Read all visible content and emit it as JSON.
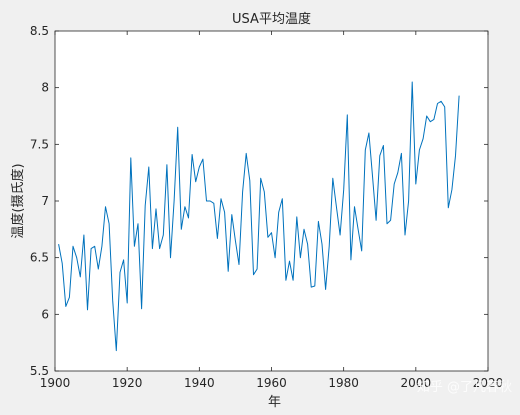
{
  "chart_data": {
    "type": "line",
    "title": "USA平均温度",
    "xlabel": "年",
    "ylabel": "温度(摄氏度)",
    "xlim": [
      1900,
      2020
    ],
    "ylim": [
      5.5,
      8.5
    ],
    "xticks": [
      "1900",
      "1920",
      "1940",
      "1960",
      "1980",
      "2000",
      "2020"
    ],
    "yticks": [
      "5.5",
      "6",
      "6.5",
      "7",
      "7.5",
      "8",
      "8.5"
    ],
    "grid": false,
    "series": [
      {
        "color": "#0072bd",
        "x": [
          1901,
          1902,
          1903,
          1904,
          1905,
          1906,
          1907,
          1908,
          1909,
          1910,
          1911,
          1912,
          1913,
          1914,
          1915,
          1916,
          1917,
          1918,
          1919,
          1920,
          1921,
          1922,
          1923,
          1924,
          1925,
          1926,
          1927,
          1928,
          1929,
          1930,
          1931,
          1932,
          1933,
          1934,
          1935,
          1936,
          1937,
          1938,
          1939,
          1940,
          1941,
          1942,
          1943,
          1944,
          1945,
          1946,
          1947,
          1948,
          1949,
          1950,
          1951,
          1952,
          1953,
          1954,
          1955,
          1956,
          1957,
          1958,
          1959,
          1960,
          1961,
          1962,
          1963,
          1964,
          1965,
          1966,
          1967,
          1968,
          1969,
          1970,
          1971,
          1972,
          1973,
          1974,
          1975,
          1976,
          1977,
          1978,
          1979,
          1980,
          1981,
          1982,
          1983,
          1984,
          1985,
          1986,
          1987,
          1988,
          1989,
          1990,
          1991,
          1992,
          1993,
          1994,
          1995,
          1996,
          1997,
          1998,
          1999,
          2000,
          2001,
          2002,
          2003,
          2004,
          2005,
          2006,
          2007,
          2008,
          2009,
          2010,
          2011,
          2012
        ],
        "y": [
          6.62,
          6.45,
          6.07,
          6.15,
          6.6,
          6.5,
          6.33,
          6.7,
          6.04,
          6.58,
          6.6,
          6.4,
          6.6,
          6.95,
          6.8,
          6.12,
          5.68,
          6.37,
          6.48,
          6.1,
          7.38,
          6.6,
          6.8,
          6.05,
          6.96,
          7.3,
          6.58,
          6.93,
          6.58,
          6.7,
          7.32,
          6.5,
          7.0,
          7.65,
          6.75,
          6.95,
          6.85,
          7.41,
          7.17,
          7.3,
          7.37,
          7.0,
          7.0,
          6.98,
          6.67,
          7.02,
          6.9,
          6.38,
          6.88,
          6.65,
          6.44,
          7.08,
          7.42,
          7.18,
          6.35,
          6.4,
          7.2,
          7.08,
          6.68,
          6.72,
          6.5,
          6.9,
          7.02,
          6.3,
          6.47,
          6.3,
          6.86,
          6.5,
          6.75,
          6.62,
          6.24,
          6.25,
          6.82,
          6.62,
          6.22,
          6.6,
          7.2,
          6.95,
          6.7,
          7.1,
          7.76,
          6.48,
          6.95,
          6.75,
          6.56,
          7.45,
          7.6,
          7.22,
          6.83,
          7.4,
          7.49,
          6.8,
          6.83,
          7.15,
          7.25,
          7.42,
          6.7,
          7.0,
          8.05,
          7.15,
          7.45,
          7.55,
          7.75,
          7.7,
          7.72,
          7.86,
          7.88,
          7.83,
          6.94,
          7.1,
          7.4,
          7.93
        ]
      }
    ]
  },
  "watermark": "知乎 @了凡春秋"
}
